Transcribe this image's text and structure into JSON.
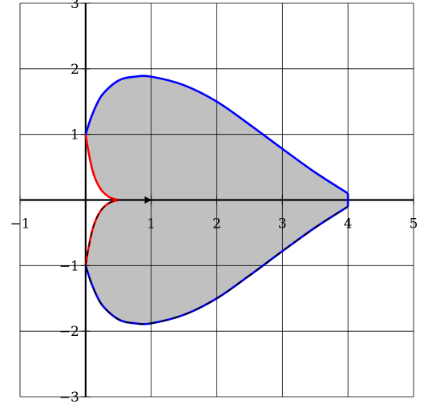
{
  "chart_data": {
    "type": "area",
    "xlim": [
      -1,
      5
    ],
    "ylim": [
      -3,
      3
    ],
    "grid": true,
    "x_ticks": [
      {
        "value": -1,
        "label": "−1"
      },
      {
        "value": 1,
        "label": "1"
      },
      {
        "value": 2,
        "label": "2"
      },
      {
        "value": 3,
        "label": "3"
      },
      {
        "value": 4,
        "label": "4"
      },
      {
        "value": 5,
        "label": "5"
      }
    ],
    "y_ticks": [
      {
        "value": 3,
        "label": "3"
      },
      {
        "value": 2,
        "label": "2"
      },
      {
        "value": 1,
        "label": "1"
      },
      {
        "value": -1,
        "label": "−1"
      },
      {
        "value": -2,
        "label": "−2"
      },
      {
        "value": -3,
        "label": "−3"
      }
    ],
    "colors": {
      "fill": "#c0c0c0",
      "outer_curve": "#0000ff",
      "inner_curve": "#ff0000",
      "axis": "#000000",
      "grid": "#000000"
    },
    "arrow": {
      "from": [
        0,
        0
      ],
      "to": [
        1,
        0
      ]
    },
    "series": [
      {
        "role": "outer-upper",
        "x": [
          0,
          0.1,
          0.25,
          0.5,
          0.75,
          1,
          1.5,
          2,
          2.5,
          3,
          3.5,
          4
        ],
        "y": [
          1,
          1.3,
          1.6,
          1.82,
          1.88,
          1.88,
          1.75,
          1.5,
          1.15,
          0.78,
          0.42,
          0.1
        ]
      },
      {
        "role": "outer-lower",
        "x": [
          0,
          0.1,
          0.25,
          0.5,
          0.75,
          1,
          1.5,
          2,
          2.5,
          3,
          3.5,
          4
        ],
        "y": [
          -1,
          -1.3,
          -1.6,
          -1.82,
          -1.88,
          -1.88,
          -1.75,
          -1.5,
          -1.15,
          -0.78,
          -0.42,
          -0.1
        ]
      },
      {
        "role": "inner-upper",
        "x": [
          0,
          0.05,
          0.12,
          0.22,
          0.35,
          0.5
        ],
        "y": [
          1,
          0.7,
          0.4,
          0.18,
          0.05,
          0
        ]
      },
      {
        "role": "inner-lower",
        "x": [
          0,
          0.05,
          0.12,
          0.22,
          0.35,
          0.5
        ],
        "y": [
          -1,
          -0.7,
          -0.4,
          -0.18,
          -0.05,
          0
        ]
      }
    ]
  }
}
